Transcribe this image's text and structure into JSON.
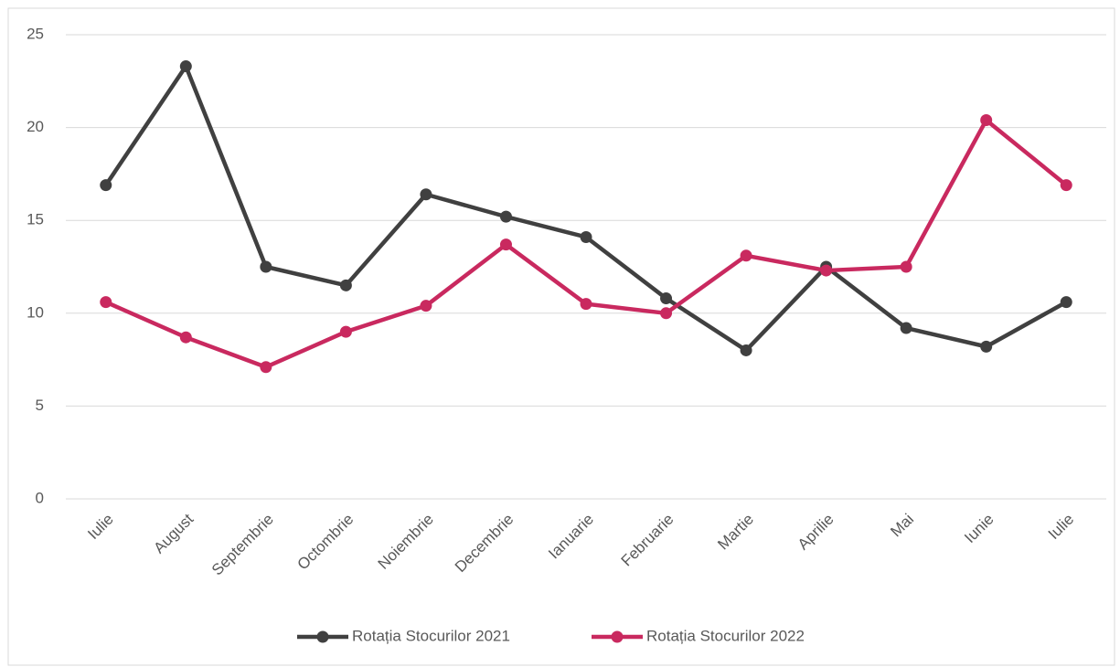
{
  "chart_data": {
    "type": "line",
    "categories": [
      "Iulie",
      "August",
      "Septembrie",
      "Octombrie",
      "Noiembrie",
      "Decembrie",
      "Ianuarie",
      "Februarie",
      "Martie",
      "Aprilie",
      "Mai",
      "Iunie",
      "Iulie"
    ],
    "series": [
      {
        "name": "Rotația Stocurilor 2021",
        "color": "#404040",
        "values": [
          16.9,
          23.3,
          12.5,
          11.5,
          16.4,
          15.2,
          14.1,
          10.8,
          8.0,
          12.5,
          9.2,
          8.2,
          10.6
        ]
      },
      {
        "name": "Rotația Stocurilor 2022",
        "color": "#c9295f",
        "values": [
          10.6,
          8.7,
          7.1,
          9.0,
          10.4,
          13.7,
          10.5,
          10.0,
          13.1,
          12.3,
          12.5,
          20.4,
          16.9
        ]
      }
    ],
    "ylim": [
      0,
      25
    ],
    "yticks": [
      0,
      5,
      10,
      15,
      20,
      25
    ],
    "grid": true,
    "legend": "bottom"
  }
}
